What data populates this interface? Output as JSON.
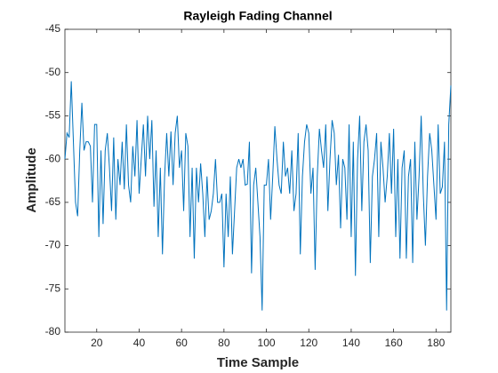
{
  "chart_data": {
    "type": "line",
    "title": "Rayleigh Fading Channel",
    "x_label": "Time Sample",
    "y_label": "Amplitude",
    "x": [
      5,
      6,
      7,
      8,
      9,
      10,
      11,
      12,
      13,
      14,
      15,
      16,
      17,
      18,
      19,
      20,
      21,
      22,
      23,
      24,
      25,
      26,
      27,
      28,
      29,
      30,
      31,
      32,
      33,
      34,
      35,
      36,
      37,
      38,
      39,
      40,
      41,
      42,
      43,
      44,
      45,
      46,
      47,
      48,
      49,
      50,
      51,
      52,
      53,
      54,
      55,
      56,
      57,
      58,
      59,
      60,
      61,
      62,
      63,
      64,
      65,
      66,
      67,
      68,
      69,
      70,
      71,
      72,
      73,
      74,
      75,
      76,
      77,
      78,
      79,
      80,
      81,
      82,
      83,
      84,
      85,
      86,
      87,
      88,
      89,
      90,
      91,
      92,
      93,
      94,
      95,
      96,
      97,
      98,
      99,
      100,
      101,
      102,
      103,
      104,
      105,
      106,
      107,
      108,
      109,
      110,
      111,
      112,
      113,
      114,
      115,
      116,
      117,
      118,
      119,
      120,
      121,
      122,
      123,
      124,
      125,
      126,
      127,
      128,
      129,
      130,
      131,
      132,
      133,
      134,
      135,
      136,
      137,
      138,
      139,
      140,
      141,
      142,
      143,
      144,
      145,
      146,
      147,
      148,
      149,
      150,
      151,
      152,
      153,
      154,
      155,
      156,
      157,
      158,
      159,
      160,
      161,
      162,
      163,
      164,
      165,
      166,
      167,
      168,
      169,
      170,
      171,
      172,
      173,
      174,
      175,
      176,
      177,
      178,
      179,
      180,
      181,
      182,
      183,
      184,
      185,
      186,
      187
    ],
    "series": [
      {
        "color": "#0072bd",
        "values": [
          -60,
          -57,
          -57.5,
          -51,
          -58,
          -65,
          -66.6,
          -59,
          -53.5,
          -59,
          -58,
          -58,
          -58.5,
          -65,
          -56,
          -56,
          -69,
          -59,
          -67.5,
          -59,
          -57,
          -61,
          -66,
          -57.5,
          -67,
          -60,
          -63,
          -58,
          -63.5,
          -56,
          -63,
          -65,
          -58.5,
          -62,
          -55.5,
          -64,
          -60,
          -56,
          -62,
          -55,
          -60,
          -55.5,
          -65.5,
          -59,
          -69,
          -61,
          -71,
          -62,
          -57,
          -62,
          -56.8,
          -63,
          -57,
          -55,
          -61,
          -59,
          -66,
          -57,
          -58.5,
          -69,
          -61,
          -71.5,
          -61,
          -65,
          -60.5,
          -64,
          -69,
          -62,
          -67,
          -66,
          -64,
          -60,
          -65,
          -65,
          -64,
          -72.5,
          -64,
          -69,
          -62,
          -71,
          -66,
          -61,
          -60,
          -61,
          -60,
          -63,
          -62.9,
          -58,
          -73.2,
          -63,
          -61,
          -65,
          -69,
          -77.5,
          -63,
          -63,
          -60,
          -67,
          -62,
          -56.2,
          -60,
          -63,
          -64,
          -58,
          -62,
          -61,
          -64,
          -59,
          -66,
          -64,
          -57,
          -71,
          -62,
          -58,
          -56,
          -57,
          -64,
          -61,
          -72.8,
          -62,
          -56.5,
          -59,
          -61,
          -56,
          -66,
          -60,
          -55.5,
          -57,
          -63,
          -59.5,
          -68,
          -60,
          -61,
          -67,
          -56,
          -69,
          -58,
          -73.5,
          -60,
          -55,
          -66,
          -58,
          -56,
          -59,
          -72,
          -62,
          -60,
          -57,
          -69,
          -58,
          -61,
          -65,
          -62,
          -57,
          -64,
          -56.5,
          -69,
          -60,
          -71.5,
          -61,
          -59,
          -71.5,
          -62,
          -60,
          -72,
          -58,
          -67,
          -62,
          -55,
          -64,
          -70,
          -62,
          -57,
          -59,
          -63,
          -67,
          -56,
          -64,
          -63.2,
          -58,
          -77.5,
          -56,
          -51.5
        ]
      }
    ],
    "xlim": [
      5,
      187
    ],
    "ylim": [
      -80,
      -45
    ],
    "xticks": [
      20,
      40,
      60,
      80,
      100,
      120,
      140,
      160,
      180
    ],
    "yticks": [
      -80,
      -75,
      -70,
      -65,
      -60,
      -55,
      -50,
      -45
    ]
  }
}
